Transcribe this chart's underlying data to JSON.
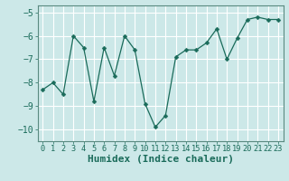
{
  "x": [
    0,
    1,
    2,
    3,
    4,
    5,
    6,
    7,
    8,
    9,
    10,
    11,
    12,
    13,
    14,
    15,
    16,
    17,
    18,
    19,
    20,
    21,
    22,
    23
  ],
  "y": [
    -8.3,
    -8.0,
    -8.5,
    -6.0,
    -6.5,
    -8.8,
    -6.5,
    -7.7,
    -6.0,
    -6.6,
    -8.9,
    -9.9,
    -9.4,
    -6.9,
    -6.6,
    -6.6,
    -6.3,
    -5.7,
    -7.0,
    -6.1,
    -5.3,
    -5.2,
    -5.3,
    -5.3
  ],
  "line_color": "#1a6b5a",
  "marker": "D",
  "marker_size": 2.5,
  "bg_color": "#cce8e8",
  "grid_color": "#ffffff",
  "xlabel": "Humidex (Indice chaleur)",
  "xlabel_fontsize": 8,
  "tick_fontsize": 7,
  "xlim": [
    -0.5,
    23.5
  ],
  "ylim": [
    -10.5,
    -4.7
  ],
  "yticks": [
    -10,
    -9,
    -8,
    -7,
    -6,
    -5
  ],
  "xticks": [
    0,
    1,
    2,
    3,
    4,
    5,
    6,
    7,
    8,
    9,
    10,
    11,
    12,
    13,
    14,
    15,
    16,
    17,
    18,
    19,
    20,
    21,
    22,
    23
  ]
}
